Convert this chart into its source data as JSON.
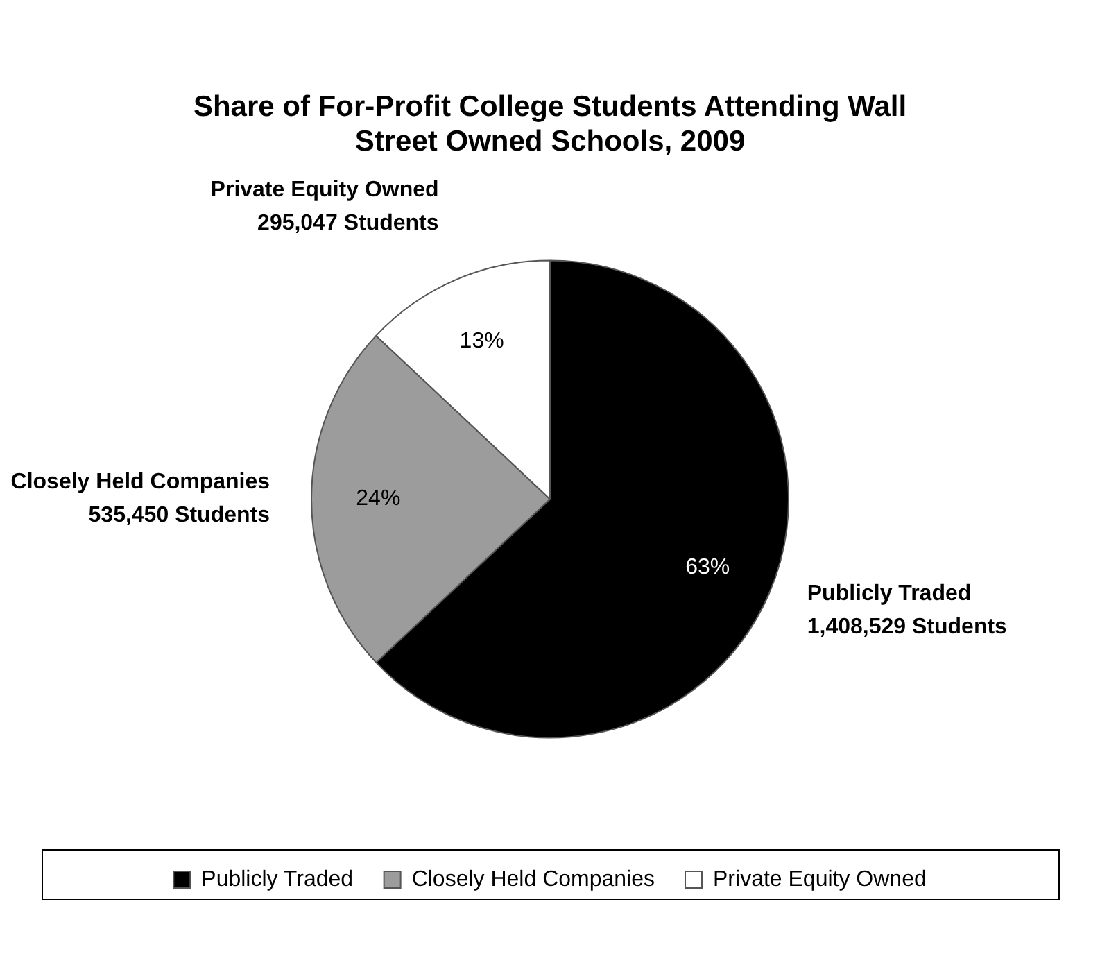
{
  "chart_data": {
    "type": "pie",
    "title": "Share of For-Profit College Students Attending Wall Street Owned Schools, 2009",
    "categories": [
      "Publicly Traded",
      "Closely Held Companies",
      "Private Equity Owned"
    ],
    "values": [
      63,
      24,
      13
    ],
    "value_labels": [
      "63%",
      "24%",
      "13%"
    ],
    "colors": [
      "#000000",
      "#9c9c9c",
      "#ffffff"
    ],
    "annotations": [
      "1,408,529 Students",
      "535,450 Students",
      "295,047 Students"
    ],
    "legend": "bottom"
  }
}
